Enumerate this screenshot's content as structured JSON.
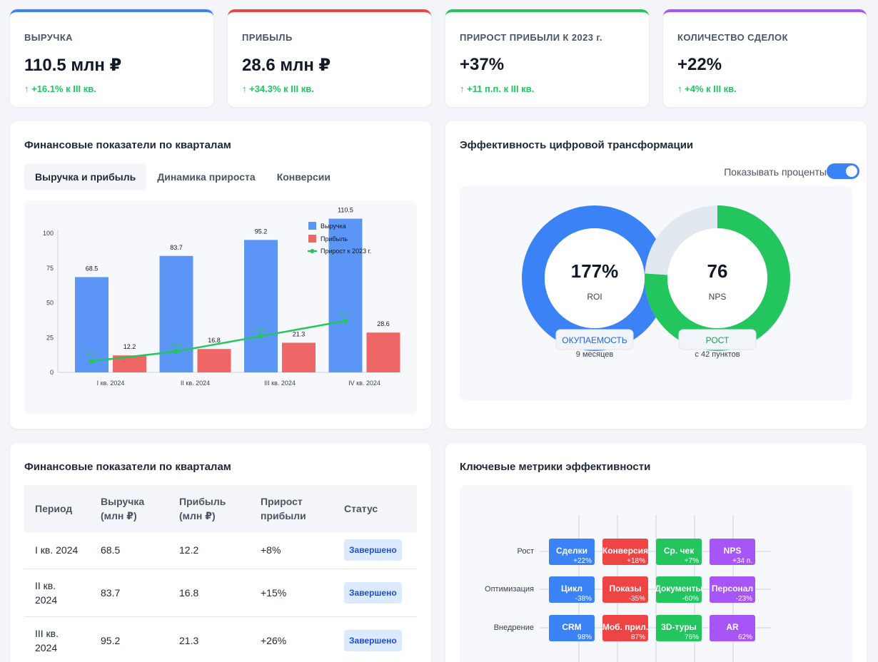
{
  "kpis": [
    {
      "label": "ВЫРУЧКА",
      "value": "110.5 млн ₽",
      "delta": "↑ +16.1% к III кв.",
      "color": "#3b82f6"
    },
    {
      "label": "ПРИБЫЛЬ",
      "value": "28.6 млн ₽",
      "delta": "↑ +34.3% к III кв.",
      "color": "#ef4444"
    },
    {
      "label": "ПРИРОСТ ПРИБЫЛИ К 2023 г.",
      "value": "+37%",
      "delta": "↑ +11 п.п. к III кв.",
      "color": "#22c55e"
    },
    {
      "label": "КОЛИЧЕСТВО СДЕЛОК",
      "value": "+22%",
      "delta": "↑ +4% к III кв.",
      "color": "#a855f7"
    }
  ],
  "finance_chart": {
    "title": "Финансовые показатели по кварталам",
    "tabs": [
      {
        "label": "Выручка и прибыль",
        "active": true
      },
      {
        "label": "Динамика прироста",
        "active": false
      },
      {
        "label": "Конверсии",
        "active": false
      }
    ]
  },
  "chart_data": {
    "type": "bar",
    "categories": [
      "I кв. 2024",
      "II кв. 2024",
      "III кв. 2024",
      "IV кв. 2024"
    ],
    "series": [
      {
        "name": "Выручка",
        "type": "bar",
        "color": "#5b96f7",
        "values": [
          68.5,
          83.7,
          95.2,
          110.5
        ],
        "labels": [
          "68.5",
          "83.7",
          "95.2",
          "110.5"
        ]
      },
      {
        "name": "Прибыль",
        "type": "bar",
        "color": "#ef6666",
        "values": [
          12.2,
          16.8,
          21.3,
          28.6
        ],
        "labels": [
          "12.2",
          "16.8",
          "21.3",
          "28.6"
        ]
      },
      {
        "name": "Прирост к 2023 г.",
        "type": "line",
        "color": "#22c55e",
        "values": [
          8,
          15,
          26,
          37
        ],
        "labels": [
          "8%",
          "15%",
          "26%",
          "37%"
        ]
      }
    ],
    "yticks": [
      "0",
      "25",
      "50",
      "75",
      "100"
    ],
    "ylim": [
      0,
      100
    ],
    "grid": false,
    "legend": "top-right"
  },
  "digital": {
    "title": "Эффективность цифровой трансформации",
    "toggle_label": "Показывать проценты",
    "toggle_on": true,
    "roi": {
      "value": "177%",
      "label": "ROI",
      "badge": "ОКУПАЕМОСТЬ",
      "sub": "9 месяцев",
      "fraction": 1.0,
      "color": "#3b82f6"
    },
    "nps": {
      "value": "76",
      "label": "NPS",
      "badge": "РОСТ",
      "sub": "с 42 пунктов",
      "fraction": 0.76,
      "color": "#22c55e",
      "track": "#e2e8f0"
    }
  },
  "table": {
    "title": "Финансовые показатели по кварталам",
    "headers": [
      [
        "Период"
      ],
      [
        "Выручка",
        "(млн ₽)"
      ],
      [
        "Прибыль",
        "(млн ₽)"
      ],
      [
        "Прирост",
        "прибыли"
      ],
      [
        "Статус"
      ]
    ],
    "rows": [
      {
        "period": [
          "I кв. 2024"
        ],
        "revenue": "68.5",
        "profit": "12.2",
        "growth": "+8%",
        "status": "Завершено"
      },
      {
        "period": [
          "II кв.",
          "2024"
        ],
        "revenue": "83.7",
        "profit": "16.8",
        "growth": "+15%",
        "status": "Завершено"
      },
      {
        "period": [
          "III кв.",
          "2024"
        ],
        "revenue": "95.2",
        "profit": "21.3",
        "growth": "+26%",
        "status": "Завершено"
      }
    ]
  },
  "metrics": {
    "title": "Ключевые метрики эффективности",
    "rows": [
      "Рост",
      "Оптимизация",
      "Внедрение"
    ],
    "colors": [
      "#3b82f6",
      "#ef4444",
      "#22c55e",
      "#a855f7"
    ],
    "cells": [
      [
        {
          "name": "Сделки",
          "value": "+22%"
        },
        {
          "name": "Конверсия",
          "value": "+18%"
        },
        {
          "name": "Ср. чек",
          "value": "+7%"
        },
        {
          "name": "NPS",
          "value": "+34 п."
        }
      ],
      [
        {
          "name": "Цикл",
          "value": "-38%"
        },
        {
          "name": "Показы",
          "value": "-35%"
        },
        {
          "name": "Документы",
          "value": "-60%"
        },
        {
          "name": "Персонал",
          "value": "-23%"
        }
      ],
      [
        {
          "name": "CRM",
          "value": "98%"
        },
        {
          "name": "Моб. прил.",
          "value": "87%"
        },
        {
          "name": "3D-туры",
          "value": "76%"
        },
        {
          "name": "AR",
          "value": "62%"
        }
      ]
    ]
  }
}
